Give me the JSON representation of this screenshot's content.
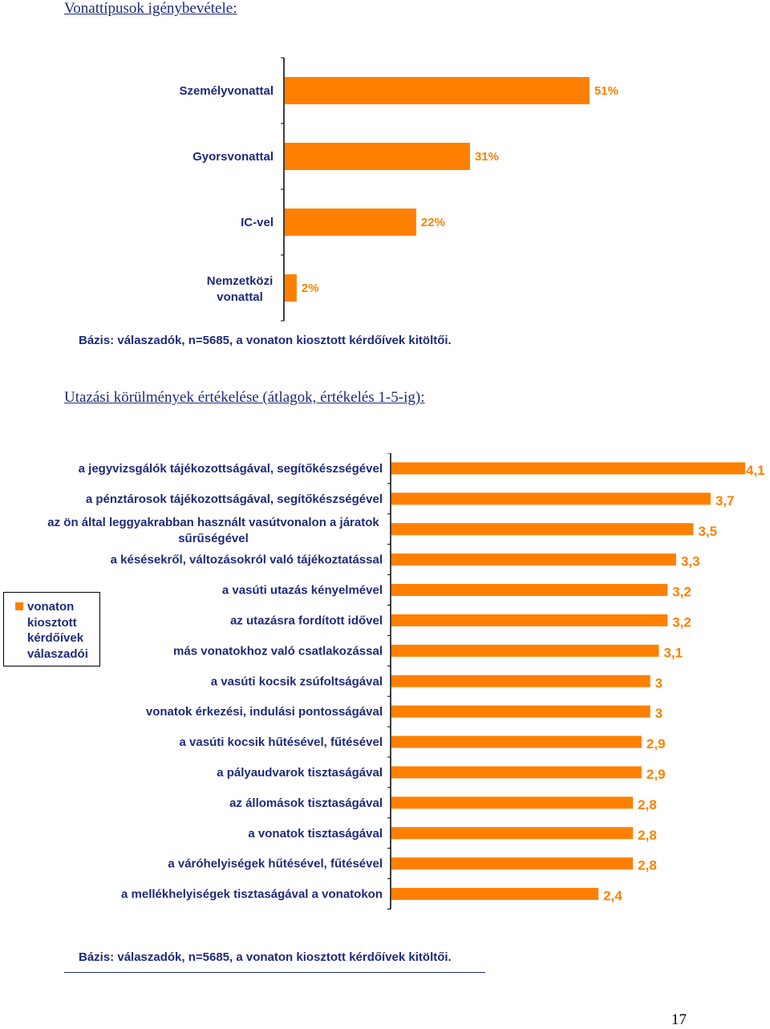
{
  "heading1": "Vonattípusok igénybevétele:",
  "heading2": "Utazási körülmények értékelése (átlagok, értékelés 1-5-ig):",
  "basis1": "Bázis: válaszadók, n=5685, a vonaton kiosztott kérdőívek kitöltői.",
  "basis2": "Bázis: válaszadók, n=5685, a vonaton kiosztott kérdőívek kitöltői.",
  "page_number": "17",
  "colors": {
    "bar": "#ff8000",
    "text": "#1f2a7a",
    "value_label": "#ff8000"
  },
  "legend": {
    "label": "vonaton kiosztott kérdőívek válaszadói"
  },
  "chart_data": [
    {
      "type": "bar",
      "orientation": "horizontal",
      "categories": [
        "Személyvonattal",
        "Gyorsvonattal",
        "IC-vel",
        "Nemzetközi vonattal"
      ],
      "values": [
        51,
        31,
        22,
        2
      ],
      "value_labels": [
        "51%",
        "31%",
        "22%",
        "2%"
      ],
      "unit": "%",
      "xlim": [
        0,
        100
      ]
    },
    {
      "type": "bar",
      "orientation": "horizontal",
      "categories": [
        "a jegyvizsgálók tájékozottságával, segítőkészségével",
        "a pénztárosok tájékozottságával, segítőkészségével",
        "az ön által leggyakrabban használt vasútvonalon a járatok sűrűségével",
        "a késésekről, változásokról való tájékoztatással",
        "a vasúti utazás kényelmével",
        "az utazásra fordított idővel",
        "más vonatokhoz való csatlakozással",
        "a vasúti kocsik zsúfoltságával",
        "vonatok érkezési, indulási pontosságával",
        "a vasúti kocsik hűtésével, fűtésével",
        "a pályaudvarok tisztaságával",
        "az állomások tisztaságával",
        "a vonatok tisztaságával",
        "a váróhelyiségek hűtésével, fűtésével",
        "a mellékhelyiségek tisztaságával a vonatokon"
      ],
      "values": [
        4.1,
        3.7,
        3.5,
        3.3,
        3.2,
        3.2,
        3.1,
        3.0,
        3.0,
        2.9,
        2.9,
        2.8,
        2.8,
        2.8,
        2.4
      ],
      "value_labels": [
        "4,1",
        "3,7",
        "3,5",
        "3,3",
        "3,2",
        "3,2",
        "3,1",
        "3",
        "3",
        "2,9",
        "2,9",
        "2,8",
        "2,8",
        "2,8",
        "2,4"
      ],
      "series": [
        {
          "name": "vonaton kiosztott kérdőívek válaszadói",
          "values": [
            4.1,
            3.7,
            3.5,
            3.3,
            3.2,
            3.2,
            3.1,
            3.0,
            3.0,
            2.9,
            2.9,
            2.8,
            2.8,
            2.8,
            2.4
          ]
        }
      ],
      "xlim": [
        0,
        4.1
      ]
    }
  ]
}
